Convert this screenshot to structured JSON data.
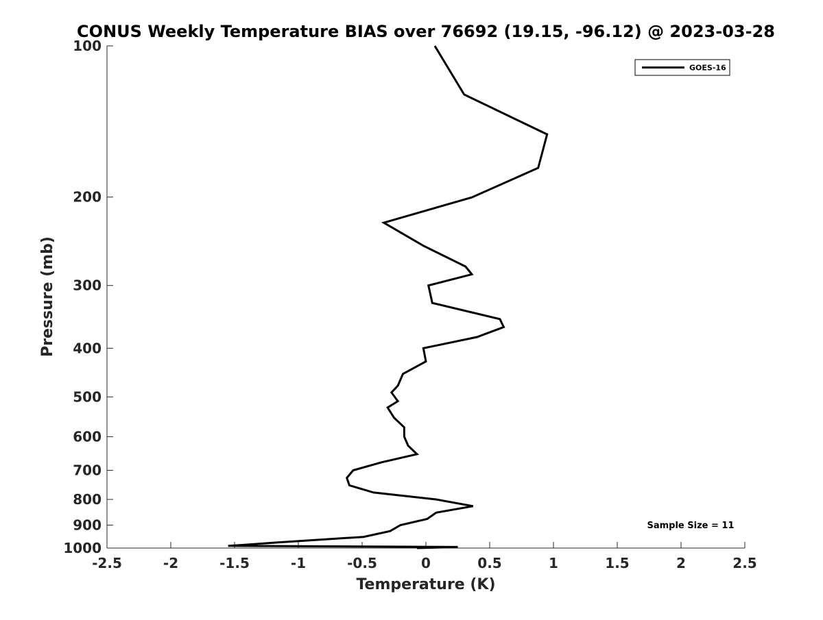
{
  "chart_data": {
    "type": "line",
    "title": "CONUS Weekly Temperature BIAS over 76692 (19.15, -96.12) @ 2023-03-28",
    "xlabel": "Temperature (K)",
    "ylabel": "Pressure (mb)",
    "xlim": [
      -2.5,
      2.5
    ],
    "ylim": [
      1000,
      100
    ],
    "y_scale": "log",
    "y_reversed": true,
    "grid": false,
    "legend_position": "top-right",
    "x_ticks": [
      -2.5,
      -2,
      -1.5,
      -1,
      -0.5,
      0,
      0.5,
      1,
      1.5,
      2,
      2.5
    ],
    "x_tick_labels": [
      "-2.5",
      "-2",
      "-1.5",
      "-1",
      "-0.5",
      "0",
      "0.5",
      "1",
      "1.5",
      "2",
      "2.5"
    ],
    "y_ticks": [
      100,
      200,
      300,
      400,
      500,
      600,
      700,
      800,
      900,
      1000
    ],
    "y_tick_labels": [
      "100",
      "200",
      "300",
      "400",
      "500",
      "600",
      "700",
      "800",
      "900",
      "1000"
    ],
    "series": [
      {
        "name": "GOES-16",
        "color": "#000000",
        "points": [
          {
            "x": 0.07,
            "y": 100
          },
          {
            "x": 0.3,
            "y": 125
          },
          {
            "x": 0.95,
            "y": 150
          },
          {
            "x": 0.88,
            "y": 175
          },
          {
            "x": 0.36,
            "y": 200.3
          },
          {
            "x": -0.33,
            "y": 225
          },
          {
            "x": -0.02,
            "y": 250
          },
          {
            "x": 0.31,
            "y": 275
          },
          {
            "x": 0.36,
            "y": 285
          },
          {
            "x": 0.02,
            "y": 300
          },
          {
            "x": 0.05,
            "y": 325
          },
          {
            "x": 0.58,
            "y": 350
          },
          {
            "x": 0.61,
            "y": 363
          },
          {
            "x": 0.4,
            "y": 380
          },
          {
            "x": -0.02,
            "y": 400
          },
          {
            "x": 0.0,
            "y": 425
          },
          {
            "x": -0.18,
            "y": 450
          },
          {
            "x": -0.22,
            "y": 475
          },
          {
            "x": -0.27,
            "y": 490
          },
          {
            "x": -0.22,
            "y": 510
          },
          {
            "x": -0.3,
            "y": 525
          },
          {
            "x": -0.25,
            "y": 550
          },
          {
            "x": -0.17,
            "y": 575
          },
          {
            "x": -0.17,
            "y": 600
          },
          {
            "x": -0.14,
            "y": 625
          },
          {
            "x": -0.07,
            "y": 650
          },
          {
            "x": -0.35,
            "y": 675
          },
          {
            "x": -0.57,
            "y": 700
          },
          {
            "x": -0.62,
            "y": 725
          },
          {
            "x": -0.6,
            "y": 750
          },
          {
            "x": -0.41,
            "y": 775
          },
          {
            "x": 0.08,
            "y": 800
          },
          {
            "x": 0.37,
            "y": 825
          },
          {
            "x": 0.08,
            "y": 850
          },
          {
            "x": 0.01,
            "y": 875
          },
          {
            "x": -0.2,
            "y": 900
          },
          {
            "x": -0.28,
            "y": 925
          },
          {
            "x": -0.49,
            "y": 950
          },
          {
            "x": -1.17,
            "y": 975
          },
          {
            "x": -1.42,
            "y": 985
          },
          {
            "x": -1.55,
            "y": 990
          },
          {
            "x": 0.25,
            "y": 995
          },
          {
            "x": -0.07,
            "y": 1000
          }
        ]
      }
    ],
    "annotations": [
      {
        "text": "Sample Size = 11",
        "position": "bottom-right"
      }
    ]
  }
}
